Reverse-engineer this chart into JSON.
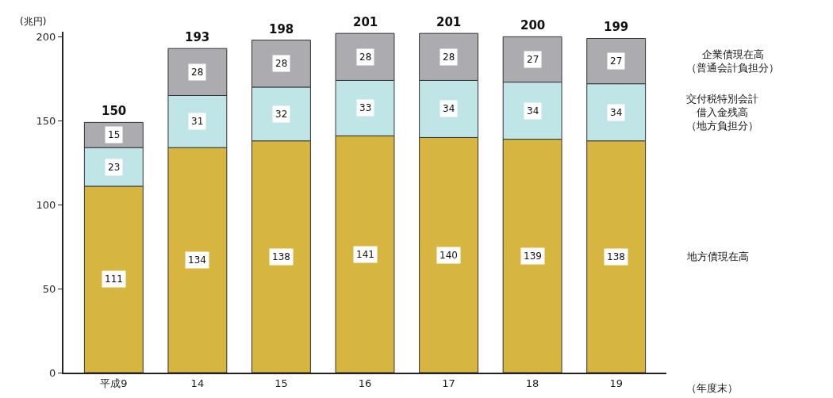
{
  "chart_data": {
    "type": "bar",
    "stacked": true,
    "categories": [
      "平成9",
      "14",
      "15",
      "16",
      "17",
      "18",
      "19"
    ],
    "xlabel": "（年度末）",
    "ylabel": "(兆円)",
    "ylim": [
      0,
      203
    ],
    "yticks": [
      0,
      50,
      100,
      150,
      200
    ],
    "data_labels": true,
    "totals": [
      "150",
      "193",
      "198",
      "201",
      "201",
      "200",
      "199"
    ],
    "series": [
      {
        "name": "地方債現在高",
        "color": "#d6b640",
        "values": [
          111,
          134,
          138,
          141,
          140,
          139,
          138
        ]
      },
      {
        "name": "交付税特別会計借入金残高（地方負担分）",
        "color": "#bfe5e6",
        "values": [
          23,
          31,
          32,
          33,
          34,
          34,
          34
        ]
      },
      {
        "name": "企業債現在高（普通会計負担分）",
        "color": "#acacb0",
        "values": [
          15,
          28,
          28,
          28,
          28,
          27,
          27
        ]
      }
    ]
  }
}
